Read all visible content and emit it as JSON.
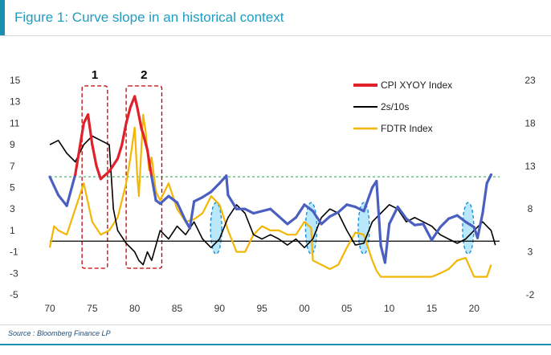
{
  "figure": {
    "title": "Figure 1: Curve slope in an historical context",
    "source": "Source : Bloomberg Finance LP"
  },
  "chart_data": {
    "type": "line",
    "x_ticks": [
      "70",
      "75",
      "80",
      "85",
      "90",
      "95",
      "00",
      "05",
      "10",
      "15",
      "20"
    ],
    "x_range": [
      1970,
      2023
    ],
    "y_left_ticks": [
      "15",
      "13",
      "11",
      "9",
      "7",
      "5",
      "3",
      "1",
      "-1",
      "-3",
      "-5"
    ],
    "y_left_range": [
      -5,
      15
    ],
    "y_right_ticks": [
      "23",
      "18",
      "13",
      "8",
      "3",
      "-2"
    ],
    "y_right_range": [
      -2,
      23
    ],
    "reference_line": {
      "value": 6,
      "axis": "left",
      "style": "dashed",
      "color": "#3a9a5c"
    },
    "zero_line": 0,
    "callouts": [
      "1",
      "2"
    ],
    "callout_ranges": [
      [
        1973.8,
        1976.8
      ],
      [
        1979.0,
        1983.2
      ]
    ],
    "highlight_years": [
      1989.6,
      2000.8,
      2007.0,
      2019.3
    ],
    "series": [
      {
        "name": "CPI XYOY Index",
        "axis": "left",
        "color_high": "#e0202a",
        "color_low": "#4a5fbf",
        "x": [
          1970,
          1971,
          1972,
          1973,
          1974,
          1974.5,
          1975,
          1975.5,
          1976,
          1977,
          1978,
          1978.5,
          1979,
          1979.5,
          1980,
          1980.3,
          1980.8,
          1981,
          1981.5,
          1982,
          1982.5,
          1983,
          1984,
          1985,
          1986,
          1986.5,
          1987,
          1988,
          1989,
          1990,
          1990.8,
          1991,
          1992,
          1993,
          1994,
          1995,
          1996,
          1997,
          1998,
          1999,
          2000,
          2001,
          2002,
          2003,
          2004,
          2005,
          2006,
          2007,
          2008,
          2008.5,
          2009,
          2009.5,
          2010,
          2011,
          2012,
          2013,
          2014,
          2015,
          2016,
          2017,
          2018,
          2019,
          2020,
          2020.4,
          2021,
          2021.5,
          2022
        ],
        "values": [
          6.0,
          4.3,
          3.3,
          6.2,
          11.0,
          11.8,
          9.0,
          7.0,
          5.8,
          6.5,
          7.7,
          9.0,
          11.0,
          12.5,
          13.5,
          12.5,
          10.5,
          10.0,
          8.5,
          6.0,
          3.8,
          3.5,
          4.2,
          3.6,
          1.9,
          1.2,
          3.7,
          4.1,
          4.6,
          5.4,
          6.1,
          4.3,
          3.0,
          3.0,
          2.6,
          2.8,
          3.0,
          2.3,
          1.6,
          2.2,
          3.4,
          2.8,
          1.6,
          2.3,
          2.7,
          3.4,
          3.2,
          2.8,
          5.0,
          5.6,
          -0.4,
          -2.0,
          1.6,
          3.2,
          2.1,
          1.5,
          1.6,
          0.1,
          1.3,
          2.1,
          2.4,
          1.8,
          1.3,
          0.3,
          2.6,
          5.4,
          6.2
        ]
      },
      {
        "name": "2s/10s",
        "axis": "right",
        "color": "#000000",
        "x": [
          1970,
          1971,
          1972,
          1973,
          1974,
          1975,
          1976,
          1977,
          1977.5,
          1978,
          1979,
          1980,
          1980.5,
          1981,
          1981.5,
          1982,
          1983,
          1984,
          1985,
          1986,
          1987,
          1988,
          1989,
          1990,
          1991,
          1992,
          1993,
          1994,
          1995,
          1996,
          1997,
          1998,
          1999,
          2000,
          2001,
          2002,
          2003,
          2004,
          2005,
          2006,
          2007,
          2008,
          2009,
          2010,
          2011,
          2012,
          2013,
          2014,
          2015,
          2016,
          2017,
          2018,
          2019,
          2020,
          2021,
          2022,
          2022.5
        ],
        "values": [
          15.5,
          16.0,
          14.5,
          13.5,
          15.5,
          16.5,
          16.0,
          15.5,
          8.0,
          5.5,
          4.0,
          3.0,
          2.0,
          1.5,
          3.0,
          2.0,
          5.5,
          4.5,
          6.0,
          5.0,
          6.5,
          4.5,
          3.5,
          4.5,
          7.0,
          8.5,
          7.5,
          5.0,
          4.5,
          5.0,
          4.5,
          3.8,
          4.5,
          3.5,
          4.5,
          7.0,
          8.0,
          7.5,
          5.5,
          3.8,
          4.0,
          6.5,
          7.5,
          8.5,
          8.0,
          6.5,
          7.0,
          6.5,
          6.0,
          5.0,
          4.5,
          4.0,
          4.5,
          5.5,
          6.5,
          5.5,
          3.8
        ]
      },
      {
        "name": "FDTR Index",
        "axis": "right",
        "color": "#f2b705",
        "x": [
          1970,
          1970.5,
          1971,
          1972,
          1973,
          1974,
          1975,
          1976,
          1977,
          1978,
          1979,
          1979.5,
          1980,
          1980.3,
          1980.5,
          1981,
          1981.3,
          1981.7,
          1982,
          1982.5,
          1983,
          1984,
          1985,
          1986,
          1987,
          1988,
          1989,
          1990,
          1991,
          1992,
          1993,
          1994,
          1995,
          1996,
          1997,
          1998,
          1999,
          2000,
          2000.8,
          2001,
          2002,
          2003,
          2004,
          2005,
          2006,
          2007,
          2008,
          2008.5,
          2009,
          2015,
          2016,
          2017,
          2018,
          2019,
          2020,
          2021,
          2021.5,
          2022
        ],
        "values": [
          3.5,
          6.0,
          5.5,
          5.0,
          8.0,
          11.0,
          6.5,
          5.0,
          5.5,
          7.0,
          11.0,
          14.0,
          17.5,
          12.0,
          9.5,
          19.0,
          17.0,
          12.5,
          14.0,
          10.0,
          9.0,
          11.0,
          8.0,
          6.5,
          6.8,
          7.5,
          9.5,
          8.5,
          5.5,
          3.0,
          3.0,
          5.0,
          6.0,
          5.5,
          5.5,
          5.0,
          5.0,
          6.5,
          5.8,
          2.0,
          1.5,
          1.0,
          1.5,
          3.5,
          5.25,
          5.0,
          2.0,
          0.8,
          0.1,
          0.1,
          0.5,
          1.0,
          2.0,
          2.3,
          0.1,
          0.1,
          0.1,
          1.5
        ]
      }
    ],
    "legend_position": "top-right",
    "grid": false
  }
}
